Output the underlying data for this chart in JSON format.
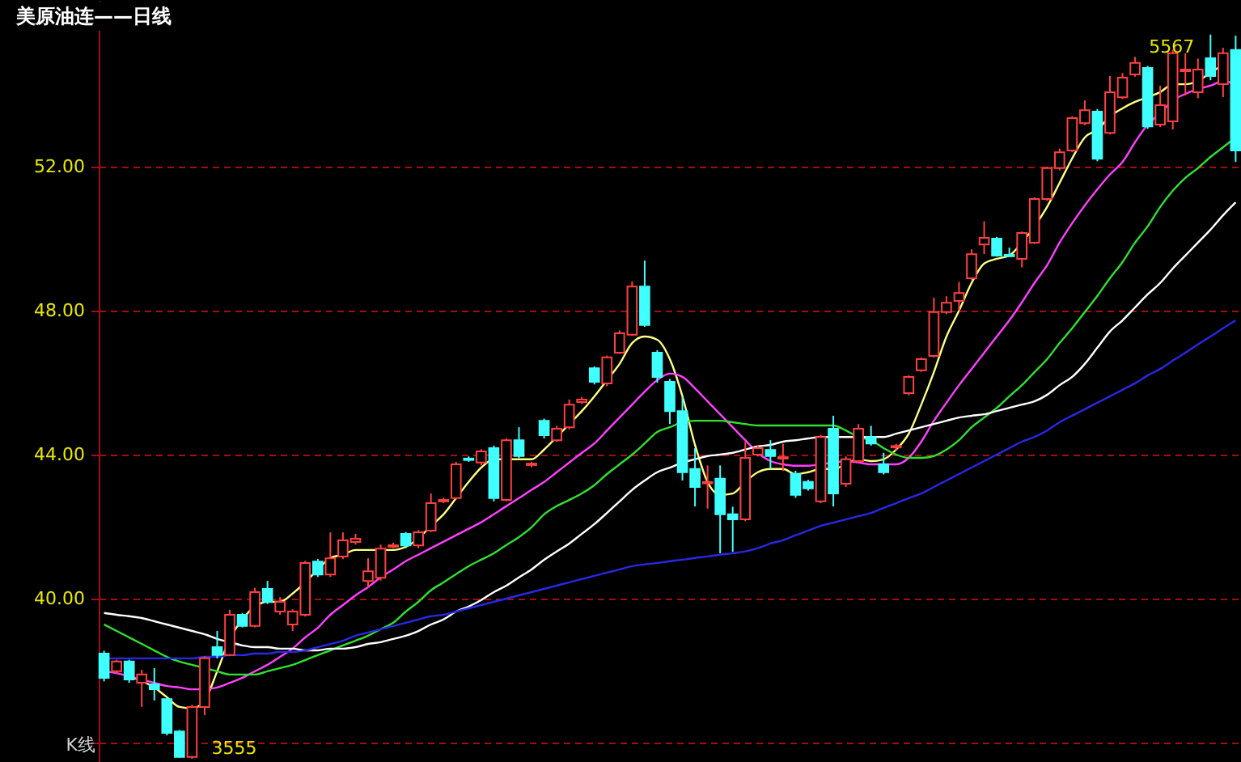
{
  "chart_data": {
    "type": "candlestick",
    "title": "美原油连——日线",
    "categories": [
      null,
      null,
      null,
      null,
      null,
      null,
      null,
      null,
      null,
      null,
      null,
      null,
      null,
      null,
      null,
      null,
      null,
      null,
      null,
      null,
      null,
      null,
      null,
      null,
      null,
      null,
      null,
      null,
      null,
      null,
      null,
      null,
      null,
      null,
      null,
      null,
      null,
      null,
      null,
      null,
      null,
      null,
      null,
      null,
      null,
      null,
      null,
      null,
      null,
      null,
      null,
      null,
      null,
      null,
      null,
      null,
      null,
      null,
      null,
      null,
      null,
      null,
      null,
      null,
      null,
      null,
      null,
      null,
      null,
      null,
      null,
      null,
      null,
      null,
      null,
      null,
      null,
      null,
      null,
      null,
      null,
      null,
      null,
      null,
      null,
      null,
      null,
      null,
      null,
      null,
      null
    ],
    "ohlc": [
      [
        38.47,
        38.55,
        37.7,
        37.8
      ],
      [
        37.98,
        38.3,
        37.9,
        38.25
      ],
      [
        38.25,
        38.3,
        37.66,
        37.75
      ],
      [
        37.66,
        38.02,
        36.99,
        37.89
      ],
      [
        37.62,
        38.07,
        37.17,
        37.48
      ],
      [
        37.21,
        37.25,
        36.2,
        36.27
      ],
      [
        36.31,
        36.35,
        35.58,
        35.6
      ],
      [
        35.6,
        37.05,
        35.55,
        36.99
      ],
      [
        36.99,
        38.4,
        36.76,
        38.34
      ],
      [
        38.65,
        39.1,
        38.34,
        38.43
      ],
      [
        38.43,
        39.69,
        38.4,
        39.55
      ],
      [
        39.55,
        39.6,
        39.2,
        39.24
      ],
      [
        39.24,
        40.3,
        39.2,
        40.18
      ],
      [
        40.27,
        40.49,
        39.85,
        39.91
      ],
      [
        39.64,
        40.04,
        39.55,
        39.91
      ],
      [
        39.28,
        39.7,
        39.1,
        39.64
      ],
      [
        39.55,
        41.05,
        39.5,
        40.99
      ],
      [
        41.03,
        41.1,
        40.6,
        40.67
      ],
      [
        40.67,
        41.84,
        40.6,
        41.12
      ],
      [
        41.17,
        41.84,
        41.1,
        41.62
      ],
      [
        41.57,
        41.8,
        41.5,
        41.66
      ],
      [
        40.49,
        41.12,
        40.31,
        40.76
      ],
      [
        40.58,
        41.5,
        40.5,
        41.39
      ],
      [
        41.44,
        41.55,
        41.4,
        41.48
      ],
      [
        41.8,
        41.85,
        41.4,
        41.48
      ],
      [
        41.48,
        41.9,
        41.4,
        41.84
      ],
      [
        41.89,
        42.92,
        41.85,
        42.65
      ],
      [
        42.7,
        42.8,
        42.65,
        42.74
      ],
      [
        42.79,
        43.8,
        42.75,
        43.73
      ],
      [
        43.89,
        43.95,
        43.8,
        43.85
      ],
      [
        43.78,
        44.15,
        43.7,
        44.09
      ],
      [
        44.18,
        44.25,
        42.7,
        42.79
      ],
      [
        42.74,
        44.45,
        42.7,
        44.4
      ],
      [
        44.4,
        44.76,
        43.9,
        43.96
      ],
      [
        43.71,
        43.8,
        43.65,
        43.75
      ],
      [
        44.94,
        45.0,
        44.45,
        44.54
      ],
      [
        44.4,
        44.8,
        44.35,
        44.72
      ],
      [
        44.76,
        45.53,
        44.7,
        45.39
      ],
      [
        45.46,
        45.6,
        45.4,
        45.53
      ],
      [
        46.4,
        46.45,
        45.95,
        46.02
      ],
      [
        45.98,
        46.75,
        45.9,
        46.7
      ],
      [
        46.83,
        47.45,
        46.8,
        47.37
      ],
      [
        47.33,
        48.81,
        47.3,
        48.67
      ],
      [
        48.67,
        49.39,
        47.55,
        47.6
      ],
      [
        46.83,
        46.9,
        46.0,
        46.16
      ],
      [
        46.02,
        46.1,
        44.85,
        45.21
      ],
      [
        45.21,
        45.6,
        43.28,
        43.51
      ],
      [
        43.6,
        44.18,
        42.56,
        43.1
      ],
      [
        43.2,
        43.7,
        42.5,
        43.24
      ],
      [
        43.33,
        43.7,
        41.26,
        42.34
      ],
      [
        42.34,
        42.55,
        41.3,
        42.2
      ],
      [
        42.2,
        44.36,
        42.15,
        43.91
      ],
      [
        44.0,
        44.25,
        43.95,
        44.18
      ],
      [
        44.13,
        44.4,
        43.6,
        43.96
      ],
      [
        43.89,
        44.3,
        43.55,
        43.93
      ],
      [
        43.46,
        43.55,
        42.8,
        42.88
      ],
      [
        43.24,
        43.3,
        43.0,
        43.06
      ],
      [
        42.7,
        44.55,
        42.65,
        44.49
      ],
      [
        44.72,
        45.08,
        42.56,
        42.92
      ],
      [
        43.19,
        43.95,
        43.1,
        43.87
      ],
      [
        43.82,
        44.85,
        43.75,
        44.72
      ],
      [
        44.49,
        44.8,
        44.25,
        44.31
      ],
      [
        43.73,
        44.05,
        43.45,
        43.51
      ],
      [
        44.2,
        44.3,
        44.1,
        44.24
      ],
      [
        45.71,
        46.2,
        45.65,
        46.16
      ],
      [
        46.34,
        46.7,
        46.3,
        46.65
      ],
      [
        46.74,
        48.36,
        46.7,
        47.96
      ],
      [
        47.96,
        48.4,
        47.9,
        48.22
      ],
      [
        48.27,
        48.8,
        48.0,
        48.49
      ],
      [
        48.9,
        49.7,
        48.85,
        49.57
      ],
      [
        49.84,
        50.48,
        49.57,
        50.02
      ],
      [
        50.0,
        50.05,
        49.5,
        49.53
      ],
      [
        49.55,
        49.75,
        49.5,
        49.51
      ],
      [
        49.44,
        50.2,
        49.2,
        50.16
      ],
      [
        49.89,
        51.15,
        49.85,
        51.1
      ],
      [
        51.1,
        52.0,
        51.05,
        51.96
      ],
      [
        51.96,
        52.5,
        51.9,
        52.4
      ],
      [
        52.45,
        53.4,
        52.4,
        53.35
      ],
      [
        53.21,
        53.84,
        53.15,
        53.57
      ],
      [
        53.53,
        53.6,
        52.15,
        52.22
      ],
      [
        52.94,
        54.52,
        52.9,
        54.07
      ],
      [
        53.93,
        54.6,
        53.88,
        54.47
      ],
      [
        54.56,
        55.05,
        54.5,
        54.88
      ],
      [
        54.74,
        54.8,
        53.05,
        53.12
      ],
      [
        53.17,
        54.25,
        53.1,
        53.71
      ],
      [
        53.26,
        55.25,
        53.03,
        55.15
      ],
      [
        54.65,
        55.15,
        53.98,
        54.7
      ],
      [
        54.07,
        55.0,
        53.9,
        54.7
      ],
      [
        55.01,
        55.67,
        54.4,
        54.52
      ],
      [
        54.29,
        55.3,
        53.93,
        55.15
      ],
      [
        55.24,
        55.64,
        52.13,
        52.45
      ]
    ],
    "colors": [
      "#40ffff",
      "#ff4040",
      "#40ffff",
      "#ff4040",
      "#40ffff",
      "#40ffff",
      "#40ffff",
      "#ff4040",
      "#ff4040",
      "#40ffff",
      "#ff4040",
      "#40ffff",
      "#ff4040",
      "#40ffff",
      "#ff4040",
      "#ff4040",
      "#ff4040",
      "#40ffff",
      "#ff4040",
      "#ff4040",
      "#ff4040",
      "#ff4040",
      "#ff4040",
      "#ff4040",
      "#40ffff",
      "#ff4040",
      "#ff4040",
      "#ff4040",
      "#ff4040",
      "#40ffff",
      "#ff4040",
      "#40ffff",
      "#ff4040",
      "#40ffff",
      "#ff4040",
      "#40ffff",
      "#ff4040",
      "#ff4040",
      "#ff4040",
      "#40ffff",
      "#ff4040",
      "#ff4040",
      "#ff4040",
      "#40ffff",
      "#40ffff",
      "#40ffff",
      "#40ffff",
      "#40ffff",
      "#ff4040",
      "#40ffff",
      "#40ffff",
      "#ff4040",
      "#ff4040",
      "#40ffff",
      "#ff4040",
      "#40ffff",
      "#40ffff",
      "#ff4040",
      "#40ffff",
      "#ff4040",
      "#ff4040",
      "#40ffff",
      "#40ffff",
      "#ff4040",
      "#ff4040",
      "#ff4040",
      "#ff4040",
      "#ff4040",
      "#ff4040",
      "#ff4040",
      "#ff4040",
      "#40ffff",
      "#40ffff",
      "#ff4040",
      "#ff4040",
      "#ff4040",
      "#ff4040",
      "#ff4040",
      "#ff4040",
      "#40ffff",
      "#ff4040",
      "#ff4040",
      "#ff4040",
      "#40ffff",
      "#ff4040",
      "#ff4040",
      "#ff4040",
      "#ff4040",
      "#40ffff",
      "#ff4040",
      "#40ffff"
    ],
    "series": [
      {
        "type": "line",
        "color": "#ffff80",
        "values": [
          null,
          null,
          37.84,
          37.71,
          37.53,
          37.26,
          36.99,
          36.95,
          37.17,
          37.98,
          38.88,
          39.42,
          39.78,
          39.91,
          39.91,
          40.14,
          40.45,
          40.81,
          41.13,
          41.22,
          41.35,
          41.35,
          41.35,
          41.35,
          41.44,
          41.67,
          42.02,
          42.34,
          42.79,
          43.24,
          43.64,
          43.87,
          43.87,
          43.87,
          43.87,
          44.14,
          44.49,
          44.85,
          45.21,
          45.62,
          46.07,
          46.52,
          47.1,
          47.28,
          47.19,
          46.65,
          45.62,
          44.27,
          43.24,
          42.88,
          42.92,
          43.24,
          43.51,
          43.6,
          43.6,
          43.46,
          43.51,
          43.6,
          43.6,
          43.73,
          43.87,
          43.82,
          43.87,
          44.14,
          44.58,
          45.39,
          46.29,
          47.28,
          48.0,
          48.77,
          49.31,
          49.44,
          49.53,
          49.89,
          50.34,
          50.88,
          51.55,
          52.23,
          52.81,
          53.03,
          53.39,
          53.62,
          53.8,
          53.93,
          54.07,
          54.29,
          54.29,
          54.38,
          54.61,
          54.83,
          null
        ]
      },
      {
        "type": "line",
        "color": "#ff40ff",
        "values": [
          37.98,
          37.93,
          37.84,
          37.75,
          37.66,
          37.57,
          37.53,
          37.48,
          37.48,
          37.53,
          37.66,
          37.8,
          37.98,
          38.16,
          38.38,
          38.61,
          38.92,
          39.19,
          39.55,
          39.82,
          40.09,
          40.32,
          40.59,
          40.81,
          41.04,
          41.22,
          41.4,
          41.58,
          41.76,
          41.94,
          42.12,
          42.34,
          42.57,
          42.79,
          43.02,
          43.24,
          43.51,
          43.78,
          44.05,
          44.31,
          44.67,
          45.03,
          45.39,
          45.75,
          46.07,
          46.25,
          46.16,
          45.84,
          45.48,
          45.12,
          44.76,
          44.4,
          44.05,
          43.82,
          43.73,
          43.69,
          43.69,
          43.73,
          43.78,
          43.82,
          43.78,
          43.73,
          43.73,
          43.73,
          43.91,
          44.36,
          44.94,
          45.44,
          45.93,
          46.38,
          46.83,
          47.28,
          47.73,
          48.23,
          48.77,
          49.26,
          49.89,
          50.43,
          50.92,
          51.37,
          51.78,
          52.13,
          52.68,
          53.17,
          53.48,
          53.84,
          54.02,
          54.16,
          54.25,
          54.38,
          54.29
        ]
      },
      {
        "type": "line",
        "color": "#30e030",
        "values": [
          39.28,
          39.1,
          38.92,
          38.74,
          38.56,
          38.38,
          38.25,
          38.16,
          38.07,
          37.98,
          37.89,
          37.89,
          37.89,
          37.98,
          38.07,
          38.16,
          38.29,
          38.43,
          38.56,
          38.7,
          38.83,
          38.97,
          39.15,
          39.33,
          39.64,
          39.91,
          40.23,
          40.45,
          40.68,
          40.9,
          41.08,
          41.26,
          41.49,
          41.71,
          41.98,
          42.34,
          42.57,
          42.74,
          42.92,
          43.15,
          43.46,
          43.73,
          44.0,
          44.31,
          44.63,
          44.76,
          44.9,
          44.94,
          44.94,
          44.94,
          44.9,
          44.85,
          44.81,
          44.81,
          44.81,
          44.81,
          44.81,
          44.81,
          44.81,
          44.67,
          44.49,
          44.4,
          44.18,
          44.0,
          43.91,
          43.91,
          43.96,
          44.14,
          44.4,
          44.76,
          45.03,
          45.3,
          45.62,
          45.93,
          46.29,
          46.65,
          47.1,
          47.51,
          47.96,
          48.41,
          48.9,
          49.35,
          49.89,
          50.34,
          50.88,
          51.33,
          51.69,
          51.96,
          52.27,
          52.54,
          52.81
        ]
      },
      {
        "type": "line",
        "color": "#ffffff",
        "values": [
          39.6,
          39.55,
          39.51,
          39.46,
          39.37,
          39.28,
          39.19,
          39.1,
          39.01,
          38.88,
          38.79,
          38.7,
          38.65,
          38.65,
          38.61,
          38.61,
          38.56,
          38.56,
          38.61,
          38.61,
          38.65,
          38.74,
          38.79,
          38.88,
          38.97,
          39.1,
          39.28,
          39.42,
          39.64,
          39.78,
          39.96,
          40.18,
          40.36,
          40.59,
          40.81,
          41.08,
          41.31,
          41.53,
          41.8,
          42.07,
          42.38,
          42.7,
          43.02,
          43.28,
          43.51,
          43.64,
          43.78,
          43.87,
          43.96,
          44.0,
          44.05,
          44.14,
          44.23,
          44.27,
          44.36,
          44.4,
          44.45,
          44.49,
          44.49,
          44.49,
          44.49,
          44.49,
          44.49,
          44.58,
          44.67,
          44.76,
          44.85,
          44.94,
          45.03,
          45.08,
          45.12,
          45.21,
          45.3,
          45.39,
          45.48,
          45.66,
          45.93,
          46.16,
          46.52,
          46.97,
          47.42,
          47.73,
          48.09,
          48.45,
          48.77,
          49.17,
          49.53,
          49.89,
          50.25,
          50.65,
          51.01
        ]
      },
      {
        "type": "line",
        "color": "#2828e8",
        "values": [
          38.34,
          38.34,
          38.34,
          38.34,
          38.34,
          38.34,
          38.34,
          38.34,
          38.38,
          38.38,
          38.43,
          38.43,
          38.47,
          38.47,
          38.52,
          38.52,
          38.56,
          38.65,
          38.74,
          38.83,
          38.97,
          39.06,
          39.15,
          39.24,
          39.33,
          39.42,
          39.51,
          39.55,
          39.64,
          39.73,
          39.82,
          39.91,
          40.0,
          40.09,
          40.18,
          40.27,
          40.36,
          40.45,
          40.54,
          40.63,
          40.72,
          40.81,
          40.9,
          40.95,
          40.99,
          41.04,
          41.08,
          41.13,
          41.17,
          41.22,
          41.26,
          41.31,
          41.4,
          41.53,
          41.62,
          41.76,
          41.89,
          42.02,
          42.11,
          42.2,
          42.29,
          42.38,
          42.52,
          42.65,
          42.79,
          42.92,
          43.1,
          43.28,
          43.46,
          43.64,
          43.82,
          44.0,
          44.18,
          44.36,
          44.49,
          44.67,
          44.9,
          45.08,
          45.26,
          45.44,
          45.62,
          45.8,
          45.98,
          46.2,
          46.38,
          46.61,
          46.83,
          47.06,
          47.28,
          47.51,
          47.73
        ]
      }
    ],
    "ylim": [
      35.46,
      56.63
    ],
    "yticks": [
      {
        "value": 36,
        "label": null
      },
      {
        "value": 40,
        "label": "40.00"
      },
      {
        "value": 44,
        "label": "44.00"
      },
      {
        "value": 48,
        "label": "48.00"
      },
      {
        "value": 52,
        "label": "52.00"
      }
    ],
    "grid": "y",
    "tick_labels": "y",
    "annotations": [
      "5567",
      "3555",
      "K线"
    ]
  }
}
